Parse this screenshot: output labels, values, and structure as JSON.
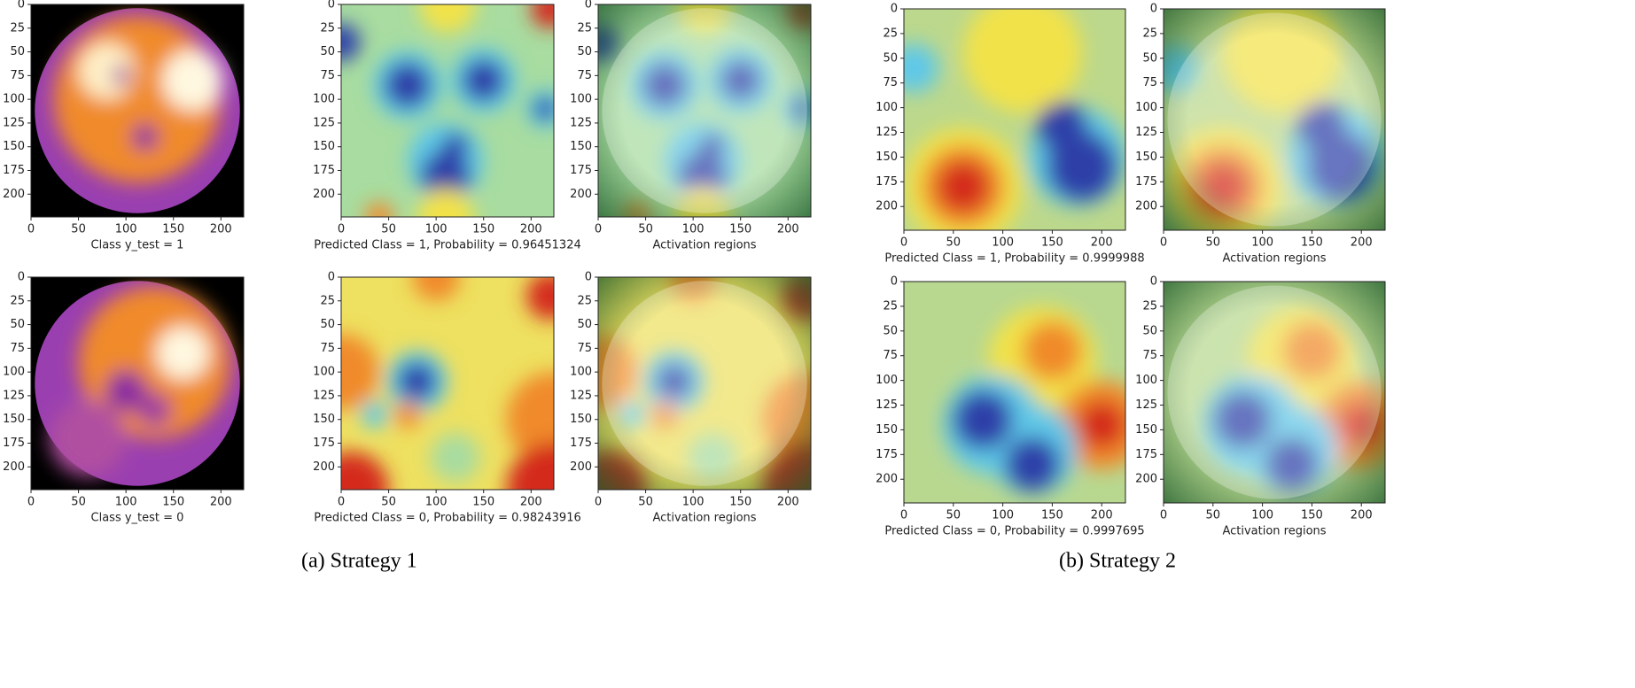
{
  "axes": {
    "xlim": [
      0,
      224
    ],
    "ylim": [
      0,
      224
    ],
    "xticks": [
      0,
      50,
      100,
      150,
      200
    ],
    "yticks": [
      0,
      25,
      50,
      75,
      100,
      125,
      150,
      175,
      200
    ]
  },
  "panels": [
    {
      "caption": "Class y_test = 1"
    },
    {
      "caption": "Predicted Class = 1, Probability = 0.96451324"
    },
    {
      "caption": "Activation regions"
    },
    {
      "caption": "Predicted Class = 1, Probability = 0.9999988"
    },
    {
      "caption": "Activation regions"
    },
    {
      "caption": "Class y_test = 0"
    },
    {
      "caption": "Predicted Class = 0, Probability = 0.98243916"
    },
    {
      "caption": "Activation regions"
    },
    {
      "caption": "Predicted Class = 0, Probability = 0.9997695"
    },
    {
      "caption": "Activation regions"
    }
  ],
  "subfigures": [
    "(a)  Strategy 1",
    "(b)  Strategy 2"
  ]
}
